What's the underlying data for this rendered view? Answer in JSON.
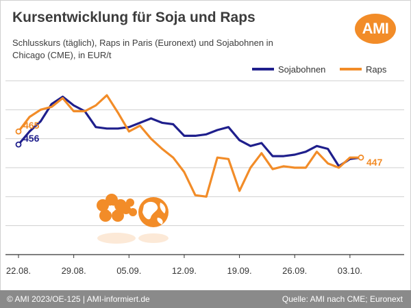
{
  "header": {
    "title": "Kursentwicklung für Soja und Raps",
    "subtitle": "Schlusskurs (täglich), Raps in Paris (Euronext) und Sojabohnen in Chicago (CME), in EUR/t",
    "logo_text": "AMI"
  },
  "footer": {
    "left": "© AMI 2023/OE-125 | AMI-informiert.de",
    "right": "Quelle: AMI nach CME; Euronext"
  },
  "colors": {
    "soja": "#1f1f8c",
    "raps": "#f28c28",
    "grid": "#cfcfcf",
    "axis": "#333333"
  },
  "chart_data": {
    "type": "line",
    "title": "Kursentwicklung für Soja und Raps",
    "subtitle": "Schlusskurs (täglich), Raps in Paris (Euronext) und Sojabohnen in Chicago (CME), in EUR/t",
    "xlabel": "",
    "ylabel": "",
    "unit": "EUR/t",
    "x_ticks": [
      "22.08.",
      "29.08.",
      "05.09.",
      "12.09.",
      "19.09.",
      "26.09.",
      "03.10."
    ],
    "ylim": [
      380,
      500
    ],
    "grid": "horizontal",
    "legend": "top-right",
    "series": [
      {
        "name": "Sojabohnen",
        "color": "#1f1f8c",
        "start_label": "456",
        "values": [
          456,
          465,
          472,
          484,
          489,
          483,
          479,
          468,
          467,
          467,
          468,
          471,
          474,
          471,
          470,
          462,
          462,
          463,
          466,
          468,
          459,
          455,
          457,
          448,
          448,
          449,
          451,
          455,
          453,
          441,
          446,
          447
        ]
      },
      {
        "name": "Raps",
        "color": "#f28c28",
        "start_label": "465",
        "end_label": "447",
        "values": [
          465,
          475,
          480,
          482,
          488,
          479,
          479,
          483,
          490,
          478,
          465,
          469,
          460,
          453,
          447,
          437,
          421,
          420,
          447,
          446,
          424,
          440,
          450,
          439,
          441,
          440,
          440,
          451,
          443,
          440,
          447,
          447
        ]
      }
    ]
  }
}
